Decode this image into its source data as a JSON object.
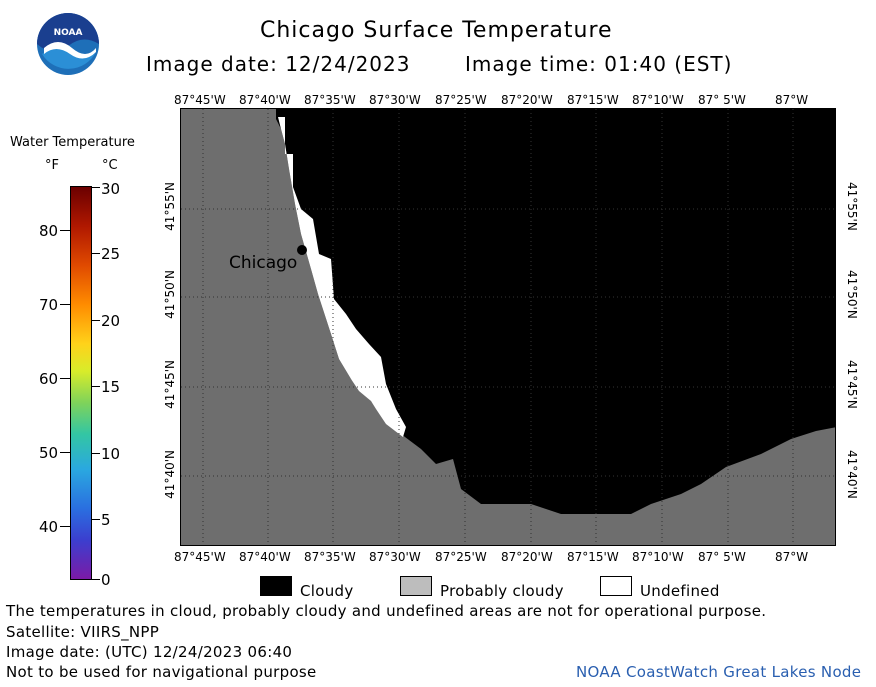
{
  "header": {
    "title": "Chicago Surface Temperature",
    "image_date": "Image date: 12/24/2023",
    "image_time": "Image time: 01:40 (EST)",
    "logo_text": "NOAA"
  },
  "colorbar": {
    "title": "Water Temperature",
    "unit_f": "°F",
    "unit_c": "°C",
    "f_ticks": [
      "80",
      "70",
      "60",
      "50",
      "40"
    ],
    "c_ticks": [
      "30",
      "25",
      "20",
      "15",
      "10",
      "5",
      "0"
    ]
  },
  "map": {
    "lon_labels": [
      "87°45'W",
      "87°40'W",
      "87°35'W",
      "87°30'W",
      "87°25'W",
      "87°20'W",
      "87°15'W",
      "87°10'W",
      "87° 5'W",
      "87°W"
    ],
    "lat_labels": [
      "41°55'N",
      "41°50'N",
      "41°45'N",
      "41°40'N"
    ],
    "city_label": "Chicago",
    "colors": {
      "land": "#6e6e6e",
      "cloudy": "#000000",
      "undefined": "#ffffff",
      "probably_cloudy": "#bdbdbd"
    }
  },
  "legend": {
    "cloudy": "Cloudy",
    "probably_cloudy": "Probably cloudy",
    "undefined": "Undefined"
  },
  "footer": {
    "note": "The temperatures in cloud, probably cloudy and undefined areas are not for operational purpose.",
    "satellite": "Satellite: VIIRS_NPP",
    "utc_date": "Image date: (UTC) 12/24/2023   06:40",
    "nav_warning": "Not to be used for navigational purpose",
    "credit": "NOAA CoastWatch Great Lakes Node"
  }
}
